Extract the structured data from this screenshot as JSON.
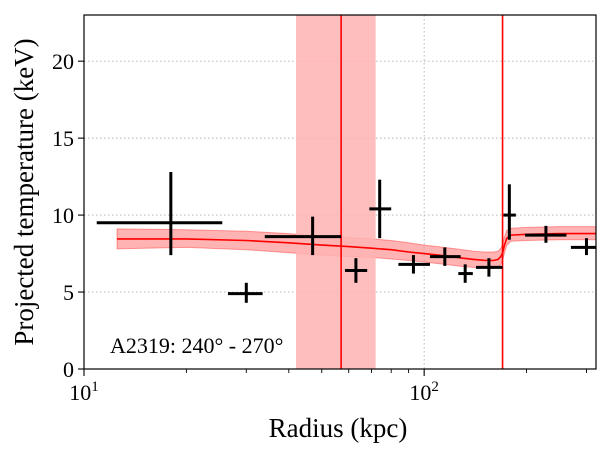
{
  "chart_data": {
    "type": "scatter",
    "xlabel": "Radius (kpc)",
    "ylabel": "Projected temperature (keV)",
    "annotation": "A2319: 240° - 270°",
    "x_scale": "log",
    "xlim": [
      10,
      320
    ],
    "ylim": [
      0,
      23
    ],
    "x_ticks": [
      {
        "value": 10,
        "base": "10",
        "exp": "1"
      },
      {
        "value": 100,
        "base": "10",
        "exp": "2"
      }
    ],
    "y_ticks": [
      0,
      5,
      10,
      15,
      20
    ],
    "grid": true,
    "points": [
      {
        "x": 18,
        "y": 9.5,
        "xerr": [
          10.9,
          25.5
        ],
        "yerr": [
          7.4,
          12.8
        ]
      },
      {
        "x": 30,
        "y": 4.9,
        "xerr": [
          26.5,
          33.5
        ],
        "yerr": [
          4.3,
          5.6
        ]
      },
      {
        "x": 47,
        "y": 8.6,
        "xerr": [
          34,
          57
        ],
        "yerr": [
          7.4,
          9.9
        ]
      },
      {
        "x": 63,
        "y": 6.4,
        "xerr": [
          58.5,
          68
        ],
        "yerr": [
          5.6,
          7.2
        ]
      },
      {
        "x": 74,
        "y": 10.4,
        "xerr": [
          69,
          80
        ],
        "yerr": [
          8.5,
          12.3
        ]
      },
      {
        "x": 93,
        "y": 6.8,
        "xerr": [
          84,
          104
        ],
        "yerr": [
          6.2,
          7.4
        ]
      },
      {
        "x": 115,
        "y": 7.3,
        "xerr": [
          104,
          128
        ],
        "yerr": [
          6.7,
          7.9
        ]
      },
      {
        "x": 132,
        "y": 6.2,
        "xerr": [
          126,
          139
        ],
        "yerr": [
          5.6,
          6.8
        ]
      },
      {
        "x": 155,
        "y": 6.6,
        "xerr": [
          142,
          170
        ],
        "yerr": [
          6.0,
          7.2
        ]
      },
      {
        "x": 178,
        "y": 10.0,
        "xerr": [
          171,
          186
        ],
        "yerr": [
          8.4,
          12.0
        ]
      },
      {
        "x": 228,
        "y": 8.7,
        "xerr": [
          198,
          262
        ],
        "yerr": [
          8.2,
          9.3
        ]
      },
      {
        "x": 300,
        "y": 7.9,
        "xerr": [
          270,
          330
        ],
        "yerr": [
          7.4,
          8.5
        ]
      }
    ],
    "model": {
      "color": "#ff0000",
      "band_color": "#ffb3b3",
      "x": [
        12.5,
        20,
        30,
        40,
        50,
        60,
        70,
        80,
        90,
        100,
        110,
        120,
        130,
        140,
        150,
        160,
        165,
        168,
        170,
        172,
        175,
        180,
        200,
        250,
        320
      ],
      "y": [
        8.45,
        8.45,
        8.35,
        8.2,
        8.05,
        7.95,
        7.85,
        7.75,
        7.6,
        7.5,
        7.4,
        7.3,
        7.2,
        7.12,
        7.06,
        7.05,
        7.12,
        7.3,
        7.55,
        8.0,
        8.5,
        8.7,
        8.75,
        8.8,
        8.8
      ],
      "lower": [
        7.8,
        7.9,
        7.75,
        7.55,
        7.4,
        7.3,
        7.25,
        7.15,
        7.05,
        6.95,
        6.85,
        6.75,
        6.65,
        6.6,
        6.55,
        6.55,
        6.6,
        6.8,
        7.05,
        7.5,
        8.05,
        8.3,
        8.35,
        8.4,
        8.4
      ],
      "upper": [
        9.1,
        9.05,
        8.95,
        8.8,
        8.65,
        8.55,
        8.45,
        8.35,
        8.2,
        8.05,
        7.95,
        7.85,
        7.75,
        7.65,
        7.6,
        7.6,
        7.65,
        7.85,
        8.1,
        8.55,
        9.0,
        9.15,
        9.2,
        9.25,
        9.25
      ]
    },
    "vertical_lines": [
      57,
      170
    ],
    "shaded_region": [
      42,
      72
    ]
  }
}
